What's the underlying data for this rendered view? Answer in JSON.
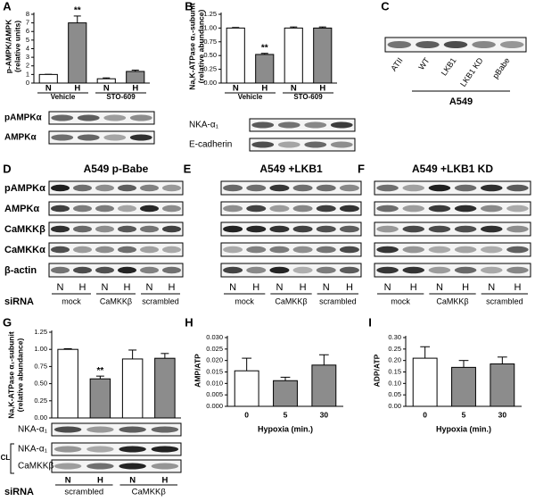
{
  "chart_data": [
    {
      "panel": "A",
      "type": "bar",
      "ylabel": [
        "p-AMPK/AMPK",
        "(relative units)"
      ],
      "categories": [
        "N",
        "H",
        "N",
        "H"
      ],
      "groups": [
        "Vehicle",
        "STO-609"
      ],
      "values": [
        1.0,
        7.0,
        0.5,
        1.35
      ],
      "errors": [
        0.02,
        0.8,
        0.1,
        0.15
      ],
      "colors": [
        "#ffffff",
        "#8c8c8c",
        "#ffffff",
        "#8c8c8c"
      ],
      "annotation": "**",
      "ylim": [
        0,
        8
      ],
      "yticks": [
        0,
        1,
        2,
        3,
        4,
        5,
        6,
        7,
        8
      ]
    },
    {
      "panel": "B",
      "type": "bar",
      "ylabel": [
        "Na,K-ATPase α₁-subunit",
        "(relative abundance)"
      ],
      "categories": [
        "N",
        "H",
        "N",
        "H"
      ],
      "groups": [
        "Vehicle",
        "STO-609"
      ],
      "values": [
        1.0,
        0.52,
        1.0,
        1.0
      ],
      "errors": [
        0.01,
        0.02,
        0.02,
        0.02
      ],
      "colors": [
        "#ffffff",
        "#8c8c8c",
        "#ffffff",
        "#8c8c8c"
      ],
      "annotation": "**",
      "ylim": [
        0,
        1.25
      ],
      "yticks": [
        {
          "value": 0,
          "label": "0.00"
        },
        {
          "value": 0.25,
          "label": "0.25"
        },
        {
          "value": 0.5,
          "label": "0.50"
        },
        {
          "value": 0.75,
          "label": "0.75"
        },
        {
          "value": 1,
          "label": "1.00"
        },
        {
          "value": 1.25,
          "label": "1.25"
        }
      ]
    },
    {
      "panel": "G",
      "type": "bar",
      "ylabel": [
        "Na,K-ATPase α₁-subunit",
        "(relative abundance)"
      ],
      "categories": [
        "N",
        "H",
        "N",
        "H"
      ],
      "groups": [
        "scrambled",
        "CaMKKβ"
      ],
      "values": [
        1.0,
        0.57,
        0.86,
        0.87
      ],
      "errors": [
        0.01,
        0.04,
        0.13,
        0.07
      ],
      "colors": [
        "#ffffff",
        "#8c8c8c",
        "#ffffff",
        "#8c8c8c"
      ],
      "annotation": "**",
      "ylim": [
        0,
        1.25
      ],
      "yticks": [
        {
          "value": 0,
          "label": "0.00"
        },
        {
          "value": 0.25,
          "label": "0.25"
        },
        {
          "value": 0.5,
          "label": "0.50"
        },
        {
          "value": 0.75,
          "label": "0.75"
        },
        {
          "value": 1,
          "label": "1.00"
        },
        {
          "value": 1.25,
          "label": "1.25"
        }
      ]
    },
    {
      "panel": "H",
      "type": "bar",
      "ylabel": [
        "AMP/ATP"
      ],
      "xlabel": "Hypoxia (min.)",
      "categories": [
        "0",
        "5",
        "30"
      ],
      "values": [
        0.0155,
        0.0112,
        0.018
      ],
      "errors": [
        0.0055,
        0.0015,
        0.0045
      ],
      "colors": [
        "#ffffff",
        "#8c8c8c",
        "#8c8c8c"
      ],
      "ylim": [
        0,
        0.03
      ],
      "yticks": [
        {
          "value": 0,
          "label": "0.000"
        },
        {
          "value": 0.005,
          "label": "0.005"
        },
        {
          "value": 0.01,
          "label": "0.010"
        },
        {
          "value": 0.015,
          "label": "0.015"
        },
        {
          "value": 0.02,
          "label": "0.020"
        },
        {
          "value": 0.025,
          "label": "0.025"
        },
        {
          "value": 0.03,
          "label": "0.030"
        }
      ]
    },
    {
      "panel": "I",
      "type": "bar",
      "ylabel": [
        "ADP/ATP"
      ],
      "xlabel": "Hypoxia (min.)",
      "categories": [
        "0",
        "5",
        "30"
      ],
      "values": [
        0.21,
        0.17,
        0.185
      ],
      "errors": [
        0.05,
        0.03,
        0.03
      ],
      "colors": [
        "#ffffff",
        "#8c8c8c",
        "#8c8c8c"
      ],
      "ylim": [
        0,
        0.3
      ],
      "yticks": [
        {
          "value": 0,
          "label": "0.00"
        },
        {
          "value": 0.05,
          "label": "0.05"
        },
        {
          "value": 0.1,
          "label": "0.10"
        },
        {
          "value": 0.15,
          "label": "0.15"
        },
        {
          "value": 0.2,
          "label": "0.20"
        },
        {
          "value": 0.25,
          "label": "0.25"
        },
        {
          "value": 0.3,
          "label": "0.30"
        }
      ]
    }
  ],
  "blot_rows": {
    "A": [
      "pAMPKα",
      "AMPKα"
    ],
    "B": [
      "NKA-α₁",
      "E-cadherin"
    ],
    "G": [
      "NKA-α₁",
      "NKA-α₁",
      "CaMKKβ"
    ]
  },
  "cl_label": "CL",
  "siRNA_label": "siRNA",
  "panel_C": {
    "label": "C",
    "lanes": [
      "ATII",
      "WT",
      "LKB1",
      "LKB1 KD",
      "pBabe"
    ],
    "cell_line": "A549"
  },
  "panels_DEF": {
    "row_labels": [
      "pAMPKα",
      "AMPKα",
      "CaMKKβ",
      "CaMKKα",
      "β-actin"
    ],
    "lanes": [
      "N",
      "H",
      "N",
      "H",
      "N",
      "H"
    ],
    "groups": [
      "mock",
      "CaMKKβ",
      "scrambled"
    ],
    "panels": [
      {
        "label": "D",
        "title": "A549 p-Babe"
      },
      {
        "label": "E",
        "title": "A549 +LKB1"
      },
      {
        "label": "F",
        "title": "A549 +LKB1 KD"
      }
    ]
  }
}
